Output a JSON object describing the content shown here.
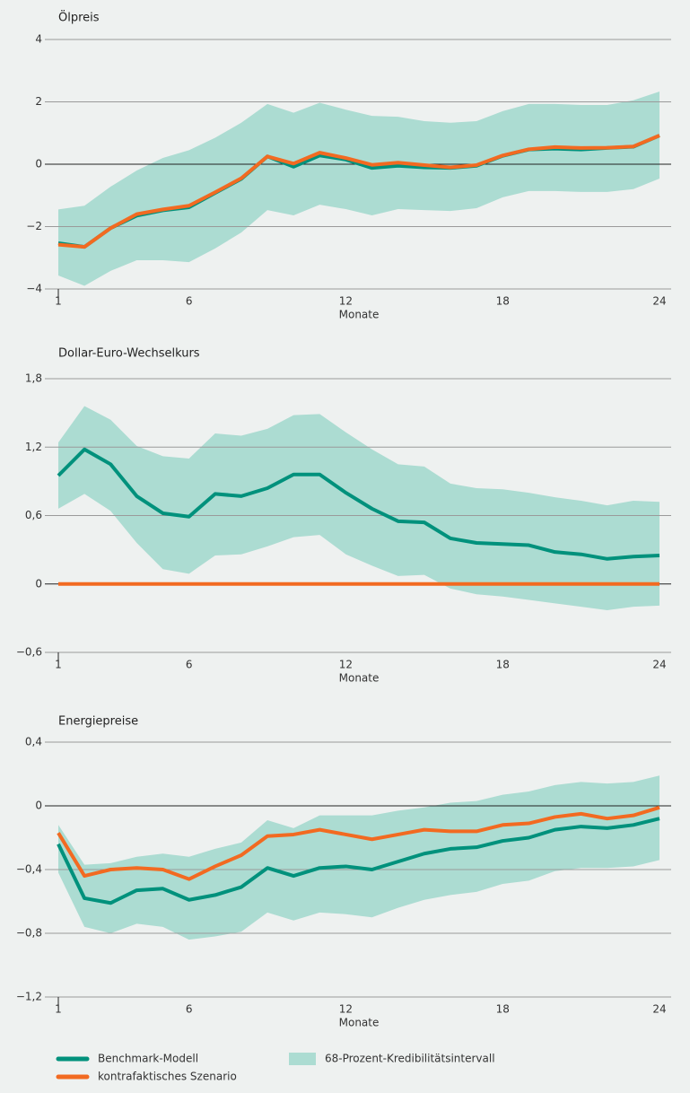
{
  "chart_data": [
    {
      "type": "line",
      "title": "Ölpreis",
      "xlabel": "Monate",
      "x": [
        1,
        2,
        3,
        4,
        5,
        6,
        7,
        8,
        9,
        10,
        11,
        12,
        13,
        14,
        15,
        16,
        17,
        18,
        19,
        20,
        21,
        22,
        23,
        24
      ],
      "xlim": [
        1,
        24
      ],
      "xticks": [
        1,
        6,
        12,
        18,
        24
      ],
      "ylim": [
        -4,
        4
      ],
      "yticks": [
        {
          "value": -4,
          "label": "−4"
        },
        {
          "value": -2,
          "label": "−2"
        },
        0,
        2,
        4
      ],
      "band": {
        "color": "#acdcd2",
        "upper": [
          -1.45,
          -1.33,
          -0.72,
          -0.2,
          0.2,
          0.45,
          0.85,
          1.33,
          1.93,
          1.65,
          1.97,
          1.75,
          1.55,
          1.52,
          1.38,
          1.33,
          1.38,
          1.7,
          1.93,
          1.93,
          1.9,
          1.9,
          2.05,
          2.33
        ],
        "lower": [
          -3.57,
          -3.9,
          -3.42,
          -3.08,
          -3.08,
          -3.14,
          -2.7,
          -2.19,
          -1.47,
          -1.64,
          -1.3,
          -1.44,
          -1.64,
          -1.44,
          -1.47,
          -1.5,
          -1.41,
          -1.06,
          -0.86,
          -0.86,
          -0.89,
          -0.89,
          -0.8,
          -0.46
        ]
      },
      "series": [
        {
          "color": "#00917c",
          "values": [
            -2.53,
            -2.65,
            -2.05,
            -1.65,
            -1.48,
            -1.38,
            -0.92,
            -0.47,
            0.25,
            -0.08,
            0.28,
            0.15,
            -0.12,
            -0.05,
            -0.1,
            -0.12,
            -0.05,
            0.27,
            0.47,
            0.5,
            0.47,
            0.52,
            0.56,
            0.92
          ]
        },
        {
          "color": "#f26a21",
          "values": [
            -2.58,
            -2.65,
            -2.05,
            -1.6,
            -1.45,
            -1.33,
            -0.9,
            -0.45,
            0.25,
            0.02,
            0.37,
            0.2,
            -0.02,
            0.05,
            -0.03,
            -0.1,
            -0.03,
            0.28,
            0.48,
            0.55,
            0.52,
            0.53,
            0.57,
            0.92
          ]
        }
      ]
    },
    {
      "type": "line",
      "title": "Dollar-Euro-Wechselkurs",
      "xlabel": "Monate",
      "x": [
        1,
        2,
        3,
        4,
        5,
        6,
        7,
        8,
        9,
        10,
        11,
        12,
        13,
        14,
        15,
        16,
        17,
        18,
        19,
        20,
        21,
        22,
        23,
        24
      ],
      "xlim": [
        1,
        24
      ],
      "xticks": [
        1,
        6,
        12,
        18,
        24
      ],
      "ylim": [
        -0.6,
        1.8
      ],
      "yticks": [
        {
          "value": -0.6,
          "label": "−0,6"
        },
        0,
        {
          "value": 0.6,
          "label": "0,6"
        },
        {
          "value": 1.2,
          "label": "1,2"
        },
        {
          "value": 1.8,
          "label": "1,8"
        }
      ],
      "band": {
        "color": "#acdcd2",
        "upper": [
          1.24,
          1.56,
          1.44,
          1.21,
          1.12,
          1.1,
          1.32,
          1.3,
          1.36,
          1.48,
          1.49,
          1.33,
          1.18,
          1.05,
          1.03,
          0.88,
          0.84,
          0.83,
          0.8,
          0.76,
          0.73,
          0.69,
          0.73,
          0.72
        ],
        "lower": [
          0.66,
          0.79,
          0.64,
          0.36,
          0.13,
          0.09,
          0.25,
          0.26,
          0.33,
          0.41,
          0.43,
          0.26,
          0.16,
          0.07,
          0.08,
          -0.04,
          -0.09,
          -0.11,
          -0.14,
          -0.17,
          -0.2,
          -0.23,
          -0.2,
          -0.19
        ]
      },
      "series": [
        {
          "color": "#00917c",
          "values": [
            0.95,
            1.18,
            1.05,
            0.77,
            0.62,
            0.59,
            0.79,
            0.77,
            0.84,
            0.96,
            0.96,
            0.8,
            0.66,
            0.55,
            0.54,
            0.4,
            0.36,
            0.35,
            0.34,
            0.28,
            0.26,
            0.22,
            0.24,
            0.25
          ]
        },
        {
          "color": "#f26a21",
          "values": [
            0,
            0,
            0,
            0,
            0,
            0,
            0,
            0,
            0,
            0,
            0,
            0,
            0,
            0,
            0,
            0,
            0,
            0,
            0,
            0,
            0,
            0,
            0,
            0
          ]
        }
      ]
    },
    {
      "type": "line",
      "title": "Energiepreise",
      "xlabel": "Monate",
      "x": [
        1,
        2,
        3,
        4,
        5,
        6,
        7,
        8,
        9,
        10,
        11,
        12,
        13,
        14,
        15,
        16,
        17,
        18,
        19,
        20,
        21,
        22,
        23,
        24
      ],
      "xlim": [
        1,
        24
      ],
      "xticks": [
        1,
        6,
        12,
        18,
        24
      ],
      "ylim": [
        -1.2,
        0.4
      ],
      "yticks": [
        {
          "value": -1.2,
          "label": "−1,2"
        },
        {
          "value": -0.8,
          "label": "−0,8"
        },
        {
          "value": -0.4,
          "label": "−0,4"
        },
        0,
        {
          "value": 0.4,
          "label": "0,4"
        }
      ],
      "band": {
        "color": "#acdcd2",
        "upper": [
          -0.12,
          -0.37,
          -0.36,
          -0.32,
          -0.3,
          -0.32,
          -0.27,
          -0.23,
          -0.09,
          -0.14,
          -0.06,
          -0.06,
          -0.06,
          -0.03,
          -0.01,
          0.02,
          0.03,
          0.07,
          0.09,
          0.13,
          0.15,
          0.14,
          0.15,
          0.19
        ],
        "lower": [
          -0.42,
          -0.76,
          -0.8,
          -0.74,
          -0.76,
          -0.84,
          -0.82,
          -0.79,
          -0.67,
          -0.72,
          -0.67,
          -0.68,
          -0.7,
          -0.64,
          -0.59,
          -0.56,
          -0.54,
          -0.49,
          -0.47,
          -0.41,
          -0.39,
          -0.39,
          -0.38,
          -0.34
        ]
      },
      "series": [
        {
          "color": "#00917c",
          "values": [
            -0.24,
            -0.58,
            -0.61,
            -0.53,
            -0.52,
            -0.59,
            -0.56,
            -0.51,
            -0.39,
            -0.44,
            -0.39,
            -0.38,
            -0.4,
            -0.35,
            -0.3,
            -0.27,
            -0.26,
            -0.22,
            -0.2,
            -0.15,
            -0.13,
            -0.14,
            -0.12,
            -0.08
          ]
        },
        {
          "color": "#f26a21",
          "values": [
            -0.17,
            -0.44,
            -0.4,
            -0.39,
            -0.4,
            -0.46,
            -0.38,
            -0.31,
            -0.19,
            -0.18,
            -0.15,
            -0.18,
            -0.21,
            -0.18,
            -0.15,
            -0.16,
            -0.16,
            -0.12,
            -0.11,
            -0.07,
            -0.05,
            -0.08,
            -0.06,
            -0.01
          ]
        }
      ]
    }
  ],
  "legend": [
    {
      "name": "Benchmark-Modell",
      "color": "#00917c",
      "kind": "line"
    },
    {
      "name": "kontrafaktisches Szenario",
      "color": "#f26a21",
      "kind": "line"
    },
    {
      "name": "68-Prozent-Kredibilitätsintervall",
      "color": "#acdcd2",
      "kind": "band"
    }
  ]
}
